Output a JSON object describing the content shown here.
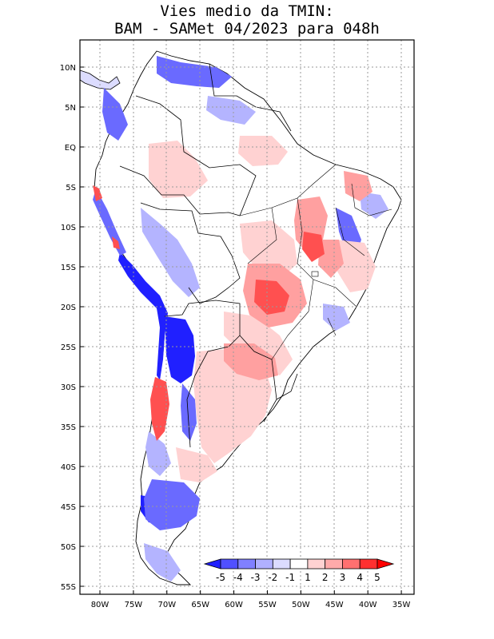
{
  "title": {
    "line1": "Vies medio da TMIN:",
    "line2": "BAM - SAMet 04/2023  para 048h"
  },
  "lat_ticks": [
    "10N",
    "5N",
    "EQ",
    "5S",
    "10S",
    "15S",
    "20S",
    "25S",
    "30S",
    "35S",
    "40S",
    "45S",
    "50S",
    "55S"
  ],
  "lon_ticks": [
    "80W",
    "75W",
    "70W",
    "65W",
    "60W",
    "55W",
    "50W",
    "45W",
    "40W",
    "35W"
  ],
  "map_extent": {
    "lon_min": -83,
    "lon_max": -34,
    "lat_min": -55.5,
    "lat_max": 12.5
  },
  "colorbar": {
    "labels": [
      "-5",
      "-4",
      "-3",
      "-2",
      "-1",
      "1",
      "2",
      "3",
      "4",
      "5"
    ],
    "colors": [
      "#1f1fff",
      "#5050ff",
      "#8080ff",
      "#b0b0ff",
      "#dcdcff",
      "#ffffff",
      "#ffd2d2",
      "#ffaaaa",
      "#ff7070",
      "#ff3030",
      "#ff0000"
    ]
  }
}
